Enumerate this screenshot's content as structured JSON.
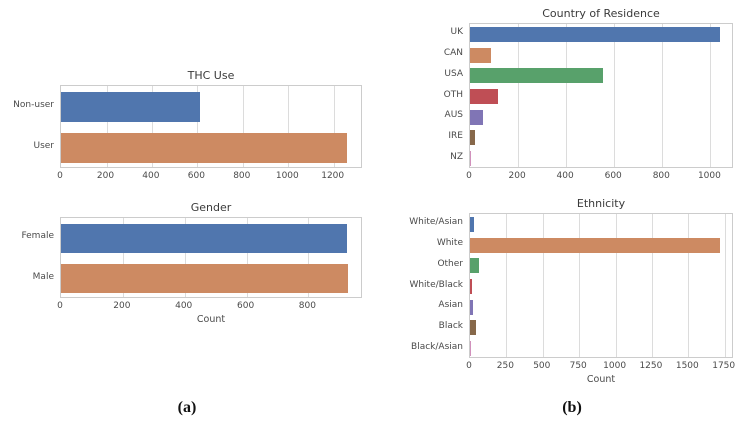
{
  "figure": {
    "background": "#ffffff",
    "captions": [
      {
        "label": "(a)"
      },
      {
        "label": "(b)"
      }
    ]
  },
  "style": {
    "grid_color": "#dcdcdc",
    "spine_color": "#cccccc",
    "text_color": "#4a4a4a",
    "title_color": "#3a3a3a"
  },
  "chart_data": [
    {
      "type": "bar",
      "orientation": "horizontal",
      "title": "THC Use",
      "categories": [
        "Non-user",
        "User"
      ],
      "values": [
        612,
        1257
      ],
      "colors": [
        "#5076AE",
        "#CD8A62"
      ],
      "xlabel": "",
      "xlim": [
        0,
        1320
      ],
      "xticks": [
        0,
        200,
        400,
        600,
        800,
        1000,
        1200
      ],
      "grid": true,
      "legend": "none"
    },
    {
      "type": "bar",
      "orientation": "horizontal",
      "title": "Gender",
      "categories": [
        "Female",
        "Male"
      ],
      "values": [
        925,
        928
      ],
      "colors": [
        "#5076AE",
        "#CD8A62"
      ],
      "xlabel": "Count",
      "xlim": [
        0,
        970
      ],
      "xticks": [
        0,
        200,
        400,
        600,
        800
      ],
      "grid": true,
      "legend": "none"
    },
    {
      "type": "bar",
      "orientation": "horizontal",
      "title": "Country of Residence",
      "categories": [
        "UK",
        "CAN",
        "USA",
        "OTH",
        "AUS",
        "IRE",
        "NZ"
      ],
      "values": [
        1040,
        88,
        552,
        115,
        53,
        21,
        6
      ],
      "colors": [
        "#5076AE",
        "#CD8A62",
        "#58A16B",
        "#BF4E55",
        "#8075B5",
        "#87684A",
        "#D191BC"
      ],
      "xlabel": "",
      "xlim": [
        0,
        1090
      ],
      "xticks": [
        0,
        200,
        400,
        600,
        800,
        1000
      ],
      "grid": true,
      "legend": "none"
    },
    {
      "type": "bar",
      "orientation": "horizontal",
      "title": "Ethnicity",
      "categories": [
        "White/Asian",
        "White",
        "Other",
        "White/Black",
        "Asian",
        "Black",
        "Black/Asian"
      ],
      "values": [
        25,
        1720,
        62,
        15,
        20,
        40,
        3
      ],
      "colors": [
        "#5076AE",
        "#CD8A62",
        "#58A16B",
        "#BF4E55",
        "#8075B5",
        "#87684A",
        "#D191BC"
      ],
      "xlabel": "Count",
      "xlim": [
        0,
        1800
      ],
      "xticks": [
        0,
        250,
        500,
        750,
        1000,
        1250,
        1500,
        1750
      ],
      "grid": true,
      "legend": "none"
    }
  ]
}
